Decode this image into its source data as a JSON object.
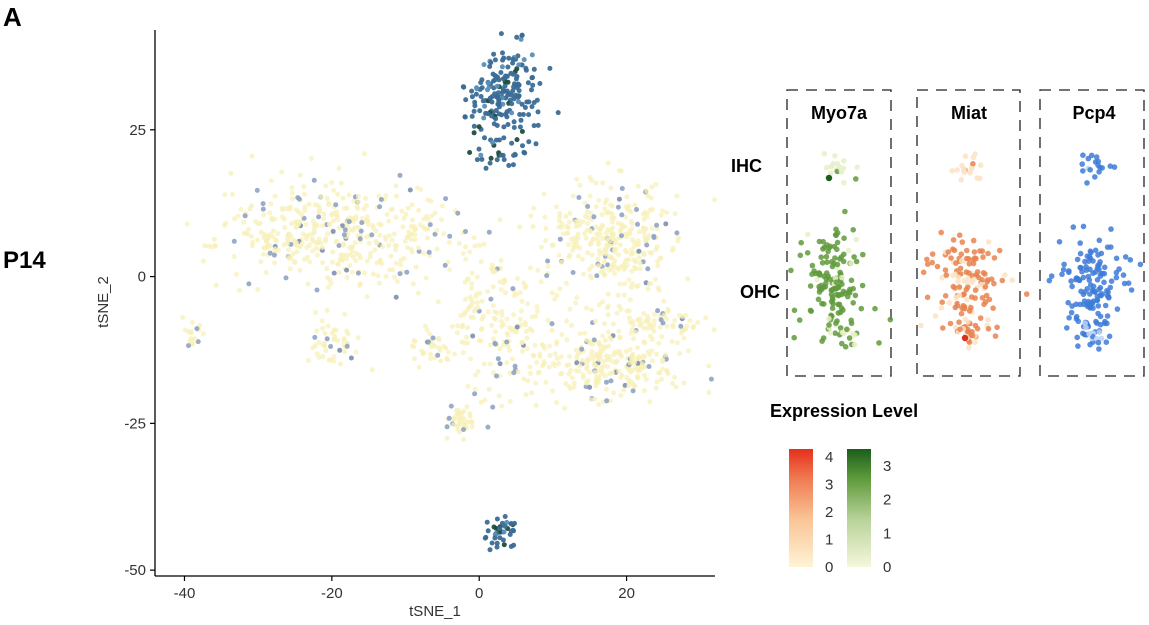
{
  "panel_label": "A",
  "row_label": "P14",
  "chart_data": [
    {
      "type": "scatter",
      "xlabel": "tSNE_1",
      "ylabel": "tSNE_2",
      "xlim": [
        -44,
        32
      ],
      "ylim": [
        -51,
        42
      ],
      "xticks": [
        "-40",
        "-20",
        "0",
        "20"
      ],
      "xtick_values": [
        -40,
        -20,
        0,
        20
      ],
      "yticks": [
        "25",
        "0",
        "-25",
        "-50"
      ],
      "ytick_values": [
        25,
        0,
        -25,
        -50
      ],
      "grid": false,
      "colors": {
        "low": "#f7f0b8",
        "mid": "#8fa3c3",
        "high": "#3a6b96",
        "dark": "#1d4e3a"
      },
      "clusters": [
        {
          "name": "",
          "cx": 3.5,
          "cy": 31,
          "sx": 2.6,
          "sy": 4.2,
          "n": 190,
          "level": "high"
        },
        {
          "name": "",
          "cx": 3.0,
          "cy": 21,
          "sx": 1.6,
          "sy": 1.1,
          "n": 22,
          "level": "high"
        },
        {
          "name": "",
          "cx": 2.8,
          "cy": -43.5,
          "sx": 1.6,
          "sy": 1.2,
          "n": 40,
          "level": "high"
        },
        {
          "name": "",
          "cx": -18,
          "cy": 7,
          "sx": 8.5,
          "sy": 4.5,
          "n": 420,
          "level": "low"
        },
        {
          "name": "",
          "cx": -27,
          "cy": 6,
          "sx": 2.5,
          "sy": 1.4,
          "n": 40,
          "level": "low"
        },
        {
          "name": "",
          "cx": -20,
          "cy": -11,
          "sx": 1.6,
          "sy": 2.0,
          "n": 45,
          "level": "low"
        },
        {
          "name": "",
          "cx": -39,
          "cy": -9.5,
          "sx": 0.7,
          "sy": 1.1,
          "n": 18,
          "level": "low"
        },
        {
          "name": "",
          "cx": 18,
          "cy": 6,
          "sx": 4.5,
          "sy": 5.0,
          "n": 330,
          "level": "low"
        },
        {
          "name": "",
          "cx": 18,
          "cy": -15,
          "sx": 5.5,
          "sy": 2.8,
          "n": 260,
          "level": "low"
        },
        {
          "name": "",
          "cx": 23,
          "cy": -8,
          "sx": 3.5,
          "sy": 1.2,
          "n": 70,
          "level": "low"
        },
        {
          "name": "",
          "cx": 4,
          "cy": -9,
          "sx": 3.5,
          "sy": 6.5,
          "n": 150,
          "level": "low"
        },
        {
          "name": "",
          "cx": -6,
          "cy": -12,
          "sx": 1.5,
          "sy": 1.8,
          "n": 40,
          "level": "low"
        },
        {
          "name": "",
          "cx": -2.5,
          "cy": -25,
          "sx": 1.0,
          "sy": 1.6,
          "n": 40,
          "level": "low"
        },
        {
          "name": "",
          "cx": -1,
          "cy": -4,
          "sx": 0.5,
          "sy": 4.5,
          "n": 20,
          "level": "low"
        },
        {
          "name": "",
          "cx": 2,
          "cy": 1.5,
          "sx": 0.5,
          "sy": 0.4,
          "n": 8,
          "level": "low"
        }
      ]
    },
    {
      "type": "scatter",
      "title": "Expression Level",
      "facets": [
        "Myo7a",
        "Miat",
        "Pcp4"
      ],
      "rows": [
        "IHC",
        "OHC"
      ],
      "facet_colors": [
        "#5f9a3c",
        "#e8834f",
        "#3e7bd8"
      ],
      "facet_low_colors": [
        "#e8f0c8",
        "#fbe3c6",
        "#bcd2f3"
      ],
      "expression_scales": [
        {
          "name": "",
          "low": "#fff3d6",
          "high": "#e5301d",
          "ticks": [
            "4",
            "3",
            "2",
            "1",
            "0"
          ],
          "tick_values": [
            4,
            3,
            2,
            1,
            0
          ],
          "range": [
            0,
            4.3
          ]
        },
        {
          "name": "",
          "low": "#f5f7dc",
          "high": "#1a5e1a",
          "ticks": [
            "3",
            "2",
            "1",
            "0"
          ],
          "tick_values": [
            3,
            2,
            1,
            0
          ],
          "range": [
            0,
            3.5
          ]
        }
      ]
    }
  ]
}
